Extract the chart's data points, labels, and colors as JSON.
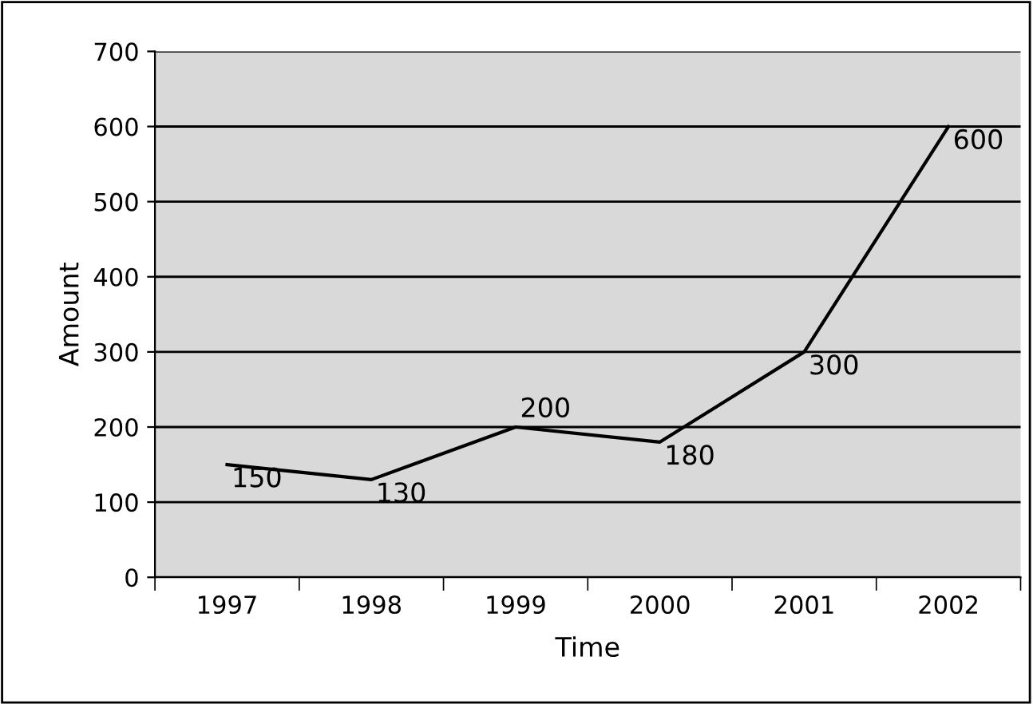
{
  "chart_data": {
    "type": "line",
    "xlabel": "Time",
    "ylabel": "Amount",
    "categories": [
      "1997",
      "1998",
      "1999",
      "2000",
      "2001",
      "2002"
    ],
    "series": [
      {
        "color": "#000000",
        "values": [
          150,
          130,
          200,
          180,
          300,
          600
        ]
      }
    ],
    "ylim": [
      0,
      700
    ],
    "yticks": [
      0,
      100,
      200,
      300,
      400,
      500,
      600,
      700
    ],
    "grid": "y",
    "data_labels": true,
    "legend": false,
    "marker": "none",
    "line_style": "solid"
  }
}
